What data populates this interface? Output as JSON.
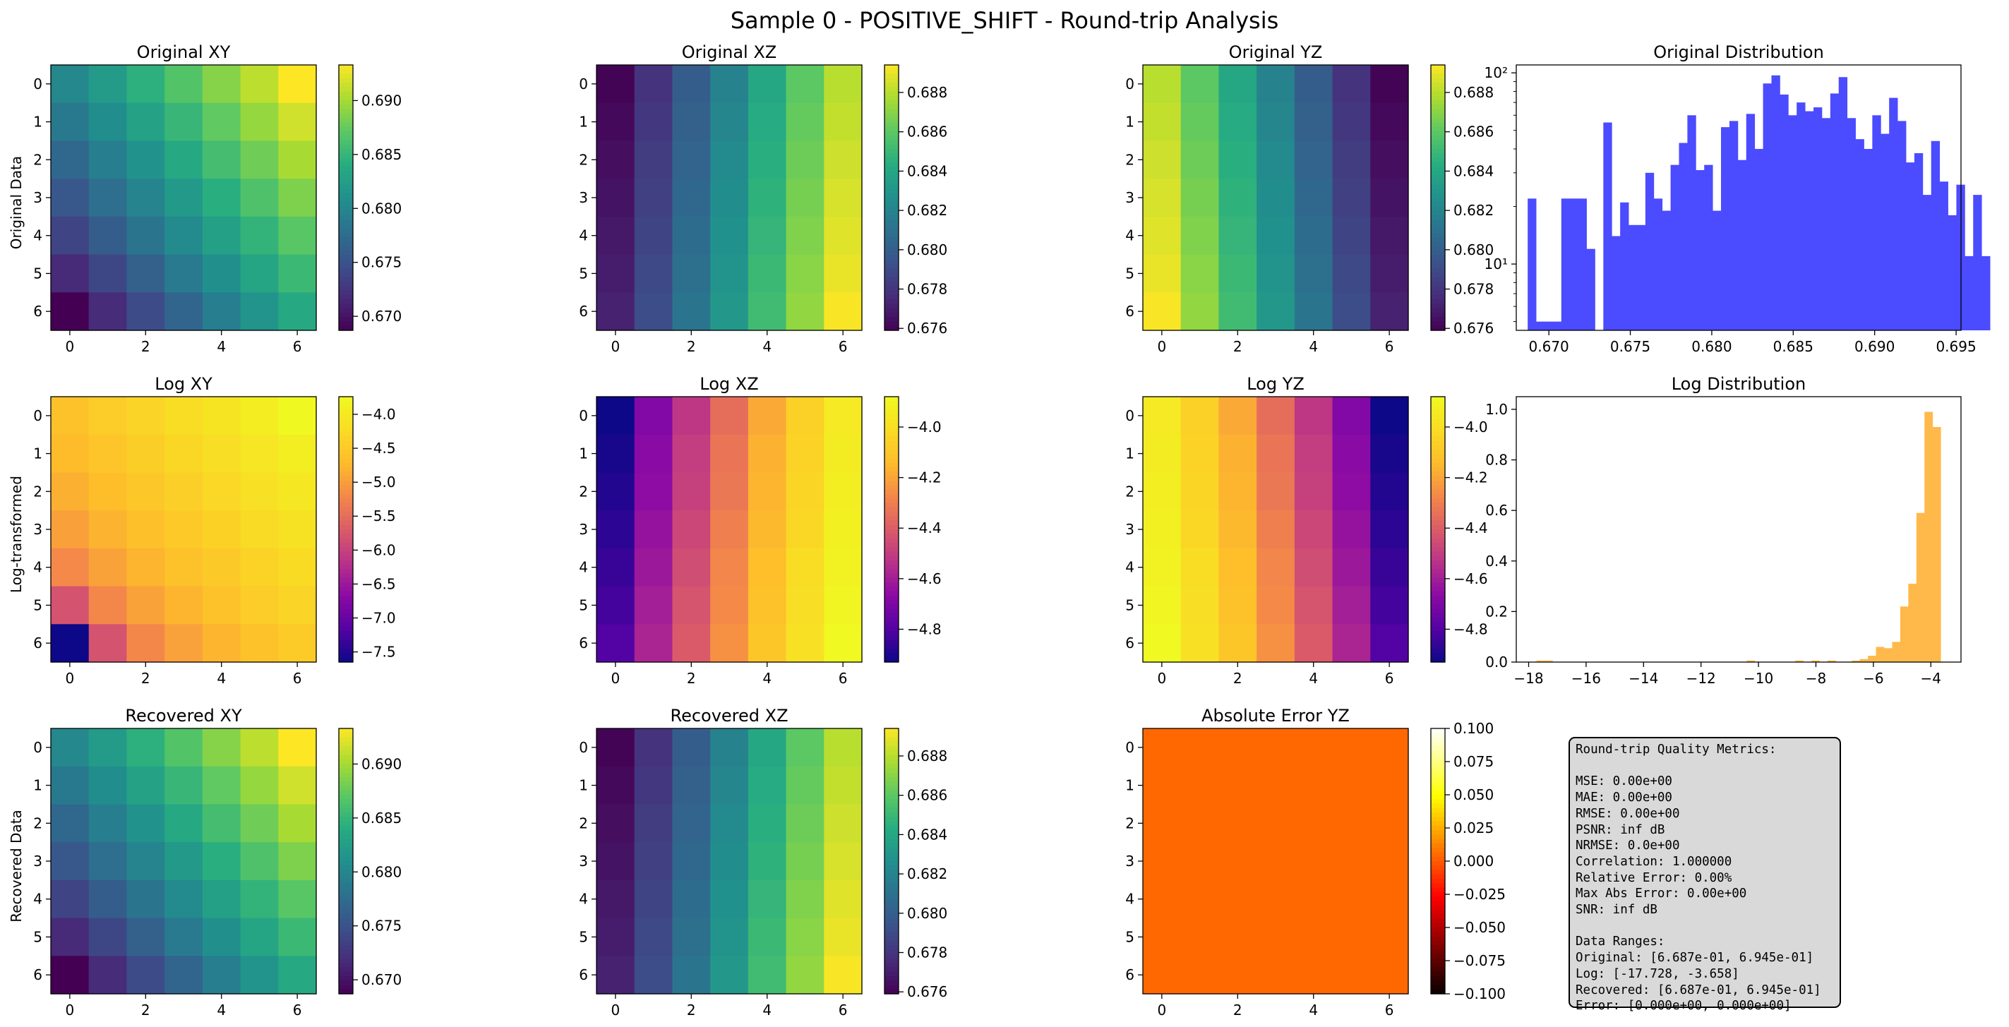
{
  "figure": {
    "title": "Sample 0 - POSITIVE_SHIFT - Round-trip Analysis",
    "row_labels": [
      "Original Data",
      "Log-transformed",
      "Recovered Data"
    ]
  },
  "chart_data": [
    {
      "type": "heatmap",
      "id": "orig_xy",
      "title": "Original XY",
      "cmap": "viridis",
      "rows": 7,
      "cols": 7,
      "xticks": [
        "0",
        "2",
        "4",
        "6"
      ],
      "yticks": [
        "0",
        "1",
        "2",
        "3",
        "4",
        "5",
        "6"
      ],
      "colorbar": {
        "ticks": [
          "0.670",
          "0.675",
          "0.680",
          "0.685",
          "0.690"
        ],
        "tick_values": [
          0.67,
          0.675,
          0.68,
          0.685,
          0.69
        ],
        "vmin": 0.6687,
        "vmax": 0.6933
      },
      "values": [
        [
          0.6802,
          0.6822,
          0.6844,
          0.6866,
          0.6888,
          0.6909,
          0.6933
        ],
        [
          0.6787,
          0.6807,
          0.6829,
          0.6851,
          0.6873,
          0.6894,
          0.6916
        ],
        [
          0.6771,
          0.6792,
          0.6813,
          0.6835,
          0.6858,
          0.6879,
          0.6901
        ],
        [
          0.6755,
          0.6776,
          0.6798,
          0.682,
          0.6842,
          0.6864,
          0.6885
        ],
        [
          0.6738,
          0.676,
          0.6782,
          0.6804,
          0.6827,
          0.6848,
          0.6869
        ],
        [
          0.6716,
          0.674,
          0.6763,
          0.6788,
          0.681,
          0.6832,
          0.6853
        ],
        [
          0.6687,
          0.6718,
          0.6744,
          0.6768,
          0.6792,
          0.6814,
          0.6837
        ]
      ]
    },
    {
      "type": "heatmap",
      "id": "orig_xz",
      "title": "Original XZ",
      "cmap": "viridis",
      "rows": 7,
      "cols": 7,
      "xticks": [
        "0",
        "2",
        "4",
        "6"
      ],
      "yticks": [
        "0",
        "1",
        "2",
        "3",
        "4",
        "5",
        "6"
      ],
      "colorbar": {
        "ticks": [
          "0.676",
          "0.678",
          "0.680",
          "0.682",
          "0.684",
          "0.686",
          "0.688"
        ],
        "tick_values": [
          0.676,
          0.678,
          0.68,
          0.682,
          0.684,
          0.686,
          0.688
        ],
        "vmin": 0.6759,
        "vmax": 0.6894
      },
      "values": [
        [
          0.676,
          0.6779,
          0.6799,
          0.6819,
          0.684,
          0.686,
          0.688
        ],
        [
          0.6762,
          0.6781,
          0.6801,
          0.6821,
          0.6842,
          0.6862,
          0.6882
        ],
        [
          0.6764,
          0.6783,
          0.6803,
          0.6823,
          0.6844,
          0.6864,
          0.6884
        ],
        [
          0.6766,
          0.6785,
          0.6805,
          0.6825,
          0.6846,
          0.6866,
          0.6886
        ],
        [
          0.6768,
          0.6787,
          0.6807,
          0.6827,
          0.6848,
          0.6868,
          0.6888
        ],
        [
          0.677,
          0.6789,
          0.6809,
          0.6829,
          0.685,
          0.687,
          0.689
        ],
        [
          0.6772,
          0.6791,
          0.6811,
          0.6831,
          0.6852,
          0.6872,
          0.6893
        ]
      ]
    },
    {
      "type": "heatmap",
      "id": "orig_yz",
      "title": "Original YZ",
      "cmap": "viridis",
      "rows": 7,
      "cols": 7,
      "xticks": [
        "0",
        "2",
        "4",
        "6"
      ],
      "yticks": [
        "0",
        "1",
        "2",
        "3",
        "4",
        "5",
        "6"
      ],
      "colorbar": {
        "ticks": [
          "0.676",
          "0.678",
          "0.680",
          "0.682",
          "0.684",
          "0.686",
          "0.688"
        ],
        "tick_values": [
          0.676,
          0.678,
          0.68,
          0.682,
          0.684,
          0.686,
          0.688
        ],
        "vmin": 0.6759,
        "vmax": 0.6894
      },
      "values": [
        [
          0.688,
          0.686,
          0.684,
          0.6819,
          0.6799,
          0.6779,
          0.676
        ],
        [
          0.6882,
          0.6862,
          0.6842,
          0.6821,
          0.6801,
          0.6781,
          0.6762
        ],
        [
          0.6884,
          0.6864,
          0.6844,
          0.6823,
          0.6803,
          0.6783,
          0.6764
        ],
        [
          0.6886,
          0.6866,
          0.6846,
          0.6825,
          0.6805,
          0.6785,
          0.6766
        ],
        [
          0.6888,
          0.6868,
          0.6848,
          0.6827,
          0.6807,
          0.6787,
          0.6768
        ],
        [
          0.689,
          0.687,
          0.685,
          0.6829,
          0.6809,
          0.6789,
          0.677
        ],
        [
          0.6893,
          0.6872,
          0.6852,
          0.6831,
          0.6811,
          0.6791,
          0.6772
        ]
      ]
    },
    {
      "type": "bar",
      "id": "orig_dist",
      "title": "Original Distribution",
      "yscale": "log",
      "color": "#4b4bff",
      "xlim": [
        0.668,
        0.6953
      ],
      "ylim": [
        4.5,
        110
      ],
      "xticks": [
        "0.670",
        "0.675",
        "0.680",
        "0.685",
        "0.690",
        "0.695"
      ],
      "xtick_values": [
        0.67,
        0.675,
        0.68,
        0.685,
        0.69,
        0.695
      ],
      "yticks": [
        "10¹",
        "10²"
      ],
      "ytick_values": [
        10,
        100
      ],
      "bin_start": 0.6687,
      "bin_width": 0.000516,
      "values": [
        22,
        5,
        5,
        5,
        22,
        22,
        22,
        12,
        0,
        55,
        14,
        21,
        16,
        16,
        30,
        22,
        19,
        33,
        43,
        60,
        31,
        33,
        19,
        52,
        56,
        35,
        61,
        40,
        88,
        97,
        77,
        60,
        70,
        63,
        66,
        58,
        78,
        95,
        58,
        45,
        40,
        60,
        48,
        74,
        56,
        34,
        38,
        23,
        44,
        27,
        18,
        26,
        11,
        23,
        11
      ]
    },
    {
      "type": "heatmap",
      "id": "log_xy",
      "title": "Log XY",
      "cmap": "plasma",
      "rows": 7,
      "cols": 7,
      "xticks": [
        "0",
        "2",
        "4",
        "6"
      ],
      "yticks": [
        "0",
        "1",
        "2",
        "3",
        "4",
        "5",
        "6"
      ],
      "colorbar": {
        "ticks": [
          "−4.0",
          "−4.5",
          "−5.0",
          "−5.5",
          "−6.0",
          "−6.5",
          "−7.0",
          "−7.5"
        ],
        "tick_values": [
          -4.0,
          -4.5,
          -5.0,
          -5.5,
          -6.0,
          -6.5,
          -7.0,
          -7.5
        ],
        "vmin": -7.65,
        "vmax": -3.74
      },
      "values": [
        [
          -4.62,
          -4.48,
          -4.35,
          -4.22,
          -4.09,
          -3.95,
          -3.75
        ],
        [
          -4.72,
          -4.58,
          -4.45,
          -4.32,
          -4.19,
          -4.06,
          -3.92
        ],
        [
          -4.83,
          -4.68,
          -4.55,
          -4.42,
          -4.29,
          -4.16,
          -4.03
        ],
        [
          -4.98,
          -4.8,
          -4.66,
          -4.52,
          -4.39,
          -4.26,
          -4.14
        ],
        [
          -5.2,
          -4.96,
          -4.79,
          -4.64,
          -4.5,
          -4.37,
          -4.24
        ],
        [
          -5.8,
          -5.22,
          -4.96,
          -4.78,
          -4.62,
          -4.48,
          -4.35
        ],
        [
          -7.65,
          -5.8,
          -5.22,
          -4.97,
          -4.78,
          -4.63,
          -4.49
        ]
      ]
    },
    {
      "type": "heatmap",
      "id": "log_xz",
      "title": "Log XZ",
      "cmap": "plasma",
      "rows": 7,
      "cols": 7,
      "xticks": [
        "0",
        "2",
        "4",
        "6"
      ],
      "yticks": [
        "0",
        "1",
        "2",
        "3",
        "4",
        "5",
        "6"
      ],
      "colorbar": {
        "ticks": [
          "−4.0",
          "−4.2",
          "−4.4",
          "−4.6",
          "−4.8"
        ],
        "tick_values": [
          -4.0,
          -4.2,
          -4.4,
          -4.6,
          -4.8
        ],
        "vmin": -4.93,
        "vmax": -3.88
      },
      "values": [
        [
          -4.93,
          -4.69,
          -4.52,
          -4.35,
          -4.19,
          -4.06,
          -3.95
        ],
        [
          -4.91,
          -4.67,
          -4.5,
          -4.33,
          -4.17,
          -4.05,
          -3.94
        ],
        [
          -4.89,
          -4.66,
          -4.49,
          -4.32,
          -4.16,
          -4.04,
          -3.93
        ],
        [
          -4.87,
          -4.64,
          -4.47,
          -4.3,
          -4.15,
          -4.03,
          -3.92
        ],
        [
          -4.85,
          -4.62,
          -4.45,
          -4.28,
          -4.13,
          -4.01,
          -3.91
        ],
        [
          -4.83,
          -4.6,
          -4.43,
          -4.27,
          -4.12,
          -4.0,
          -3.9
        ],
        [
          -4.8,
          -4.58,
          -4.41,
          -4.25,
          -4.1,
          -3.99,
          -3.88
        ]
      ]
    },
    {
      "type": "heatmap",
      "id": "log_yz",
      "title": "Log YZ",
      "cmap": "plasma",
      "rows": 7,
      "cols": 7,
      "xticks": [
        "0",
        "2",
        "4",
        "6"
      ],
      "yticks": [
        "0",
        "1",
        "2",
        "3",
        "4",
        "5",
        "6"
      ],
      "colorbar": {
        "ticks": [
          "−4.0",
          "−4.2",
          "−4.4",
          "−4.6",
          "−4.8"
        ],
        "tick_values": [
          -4.0,
          -4.2,
          -4.4,
          -4.6,
          -4.8
        ],
        "vmin": -4.93,
        "vmax": -3.88
      },
      "values": [
        [
          -3.95,
          -4.06,
          -4.19,
          -4.35,
          -4.52,
          -4.69,
          -4.93
        ],
        [
          -3.94,
          -4.05,
          -4.17,
          -4.33,
          -4.5,
          -4.67,
          -4.91
        ],
        [
          -3.93,
          -4.04,
          -4.16,
          -4.32,
          -4.49,
          -4.66,
          -4.89
        ],
        [
          -3.92,
          -4.03,
          -4.15,
          -4.3,
          -4.47,
          -4.64,
          -4.87
        ],
        [
          -3.91,
          -4.01,
          -4.13,
          -4.28,
          -4.45,
          -4.62,
          -4.85
        ],
        [
          -3.9,
          -4.0,
          -4.12,
          -4.27,
          -4.43,
          -4.6,
          -4.83
        ],
        [
          -3.88,
          -3.99,
          -4.1,
          -4.25,
          -4.41,
          -4.58,
          -4.8
        ]
      ]
    },
    {
      "type": "bar",
      "id": "log_dist",
      "title": "Log Distribution",
      "yscale": "linear",
      "color": "#ffb94a",
      "xlim": [
        -18.43,
        -2.95
      ],
      "ylim": [
        0,
        1.05
      ],
      "xticks": [
        "−18",
        "−16",
        "−14",
        "−12",
        "−10",
        "−8",
        "−6",
        "−4"
      ],
      "xtick_values": [
        -18,
        -16,
        -14,
        -12,
        -10,
        -8,
        -6,
        -4
      ],
      "yticks": [
        "0.0",
        "0.2",
        "0.4",
        "0.6",
        "0.8",
        "1.0"
      ],
      "ytick_values": [
        0,
        0.2,
        0.4,
        0.6,
        0.8,
        1.0
      ],
      "bin_start": -17.728,
      "bin_width": 0.2814,
      "values": [
        0.006,
        0.006,
        0,
        0,
        0,
        0,
        0,
        0,
        0,
        0,
        0,
        0,
        0,
        0,
        0,
        0,
        0,
        0,
        0,
        0,
        0,
        0,
        0,
        0,
        0,
        0,
        0.006,
        0,
        0,
        0,
        0,
        0,
        0.006,
        0,
        0.006,
        0,
        0.006,
        0,
        0,
        0.006,
        0.012,
        0.025,
        0.06,
        0.055,
        0.08,
        0.22,
        0.31,
        0.59,
        0.99,
        0.93
      ]
    },
    {
      "type": "heatmap",
      "id": "rec_xy",
      "title": "Recovered XY",
      "cmap": "viridis",
      "rows": 7,
      "cols": 7,
      "xticks": [
        "0",
        "2",
        "4",
        "6"
      ],
      "yticks": [
        "0",
        "1",
        "2",
        "3",
        "4",
        "5",
        "6"
      ],
      "colorbar": {
        "ticks": [
          "0.670",
          "0.675",
          "0.680",
          "0.685",
          "0.690"
        ],
        "tick_values": [
          0.67,
          0.675,
          0.68,
          0.685,
          0.69
        ],
        "vmin": 0.6687,
        "vmax": 0.6933
      },
      "values": [
        [
          0.6802,
          0.6822,
          0.6844,
          0.6866,
          0.6888,
          0.6909,
          0.6933
        ],
        [
          0.6787,
          0.6807,
          0.6829,
          0.6851,
          0.6873,
          0.6894,
          0.6916
        ],
        [
          0.6771,
          0.6792,
          0.6813,
          0.6835,
          0.6858,
          0.6879,
          0.6901
        ],
        [
          0.6755,
          0.6776,
          0.6798,
          0.682,
          0.6842,
          0.6864,
          0.6885
        ],
        [
          0.6738,
          0.676,
          0.6782,
          0.6804,
          0.6827,
          0.6848,
          0.6869
        ],
        [
          0.6716,
          0.674,
          0.6763,
          0.6788,
          0.681,
          0.6832,
          0.6853
        ],
        [
          0.6687,
          0.6718,
          0.6744,
          0.6768,
          0.6792,
          0.6814,
          0.6837
        ]
      ]
    },
    {
      "type": "heatmap",
      "id": "rec_xz",
      "title": "Recovered XZ",
      "cmap": "viridis",
      "rows": 7,
      "cols": 7,
      "xticks": [
        "0",
        "2",
        "4",
        "6"
      ],
      "yticks": [
        "0",
        "1",
        "2",
        "3",
        "4",
        "5",
        "6"
      ],
      "colorbar": {
        "ticks": [
          "0.676",
          "0.678",
          "0.680",
          "0.682",
          "0.684",
          "0.686",
          "0.688"
        ],
        "tick_values": [
          0.676,
          0.678,
          0.68,
          0.682,
          0.684,
          0.686,
          0.688
        ],
        "vmin": 0.6759,
        "vmax": 0.6894
      },
      "values": [
        [
          0.676,
          0.6779,
          0.6799,
          0.6819,
          0.684,
          0.686,
          0.688
        ],
        [
          0.6762,
          0.6781,
          0.6801,
          0.6821,
          0.6842,
          0.6862,
          0.6882
        ],
        [
          0.6764,
          0.6783,
          0.6803,
          0.6823,
          0.6844,
          0.6864,
          0.6884
        ],
        [
          0.6766,
          0.6785,
          0.6805,
          0.6825,
          0.6846,
          0.6866,
          0.6886
        ],
        [
          0.6768,
          0.6787,
          0.6807,
          0.6827,
          0.6848,
          0.6868,
          0.6888
        ],
        [
          0.677,
          0.6789,
          0.6809,
          0.6829,
          0.685,
          0.687,
          0.689
        ],
        [
          0.6772,
          0.6791,
          0.6811,
          0.6831,
          0.6852,
          0.6872,
          0.6893
        ]
      ]
    },
    {
      "type": "heatmap",
      "id": "err_yz",
      "title": "Absolute Error YZ",
      "cmap": "hot",
      "rows": 7,
      "cols": 7,
      "xticks": [
        "0",
        "2",
        "4",
        "6"
      ],
      "yticks": [
        "0",
        "1",
        "2",
        "3",
        "4",
        "5",
        "6"
      ],
      "colorbar": {
        "ticks": [
          "0.100",
          "0.075",
          "0.050",
          "0.025",
          "0.000",
          "−0.025",
          "−0.050",
          "−0.075",
          "−0.100"
        ],
        "tick_values": [
          0.1,
          0.075,
          0.05,
          0.025,
          0,
          -0.025,
          -0.05,
          -0.075,
          -0.1
        ],
        "vmin": -0.1,
        "vmax": 0.1
      },
      "values": [
        [
          0,
          0,
          0,
          0,
          0,
          0,
          0
        ],
        [
          0,
          0,
          0,
          0,
          0,
          0,
          0
        ],
        [
          0,
          0,
          0,
          0,
          0,
          0,
          0
        ],
        [
          0,
          0,
          0,
          0,
          0,
          0,
          0
        ],
        [
          0,
          0,
          0,
          0,
          0,
          0,
          0
        ],
        [
          0,
          0,
          0,
          0,
          0,
          0,
          0
        ],
        [
          0,
          0,
          0,
          0,
          0,
          0,
          0
        ]
      ]
    }
  ],
  "metrics": {
    "lines": [
      "Round-trip Quality Metrics:",
      "",
      "MSE: 0.00e+00",
      "MAE: 0.00e+00",
      "RMSE: 0.00e+00",
      "PSNR: inf dB",
      "NRMSE: 0.0e+00",
      "Correlation: 1.000000",
      "Relative Error: 0.00%",
      "Max Abs Error: 0.00e+00",
      "SNR: inf dB",
      "",
      "Data Ranges:",
      "Original: [6.687e-01, 6.945e-01]",
      "Log: [-17.728, -3.658]",
      "Recovered: [6.687e-01, 6.945e-01]",
      "Error: [0.000e+00, 0.000e+00]"
    ]
  }
}
